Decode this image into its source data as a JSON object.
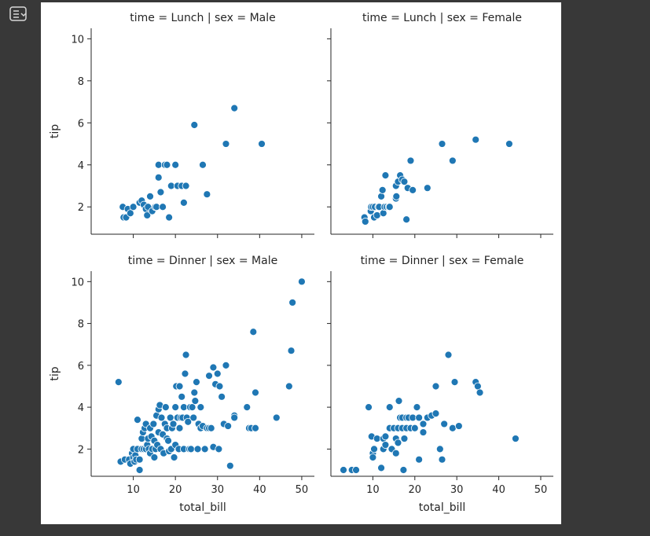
{
  "output_toolbar": {
    "icon": "output-icon"
  },
  "chart_data": {
    "type": "scatter",
    "layout": "facet-grid-2x2",
    "xlabel": "total_bill",
    "ylabel": "tip",
    "xlim": [
      0,
      53
    ],
    "ylim": [
      0.7,
      10.5
    ],
    "xticks": [
      10,
      20,
      30,
      40,
      50
    ],
    "yticks": [
      2,
      4,
      6,
      8,
      10
    ],
    "marker_color": "#1f77b4",
    "facets": [
      {
        "title": "time = Lunch | sex = Male",
        "time": "Lunch",
        "sex": "Male",
        "points": [
          [
            7.5,
            2.0
          ],
          [
            7.7,
            1.5
          ],
          [
            8.3,
            1.5
          ],
          [
            8.7,
            1.9
          ],
          [
            9.3,
            1.7
          ],
          [
            10,
            2.0
          ],
          [
            11.5,
            2.2
          ],
          [
            12,
            2.3
          ],
          [
            12.5,
            2.1
          ],
          [
            13,
            1.9
          ],
          [
            13.3,
            1.6
          ],
          [
            13.5,
            2.0
          ],
          [
            14,
            2.5
          ],
          [
            14.5,
            1.8
          ],
          [
            15.2,
            2.0
          ],
          [
            15.5,
            2.0
          ],
          [
            16,
            4.0
          ],
          [
            16,
            3.4
          ],
          [
            16.5,
            2.7
          ],
          [
            17,
            2.0
          ],
          [
            17.5,
            4.0
          ],
          [
            18,
            4.0
          ],
          [
            18.5,
            1.5
          ],
          [
            19,
            3.0
          ],
          [
            20,
            4.0
          ],
          [
            20.5,
            3.0
          ],
          [
            21.5,
            3.0
          ],
          [
            22,
            2.2
          ],
          [
            22.5,
            3.0
          ],
          [
            24.5,
            5.9
          ],
          [
            26.5,
            4.0
          ],
          [
            27.5,
            2.6
          ],
          [
            32,
            5.0
          ],
          [
            34,
            6.7
          ],
          [
            40.5,
            5.0
          ]
        ]
      },
      {
        "title": "time = Lunch | sex = Female",
        "time": "Lunch",
        "sex": "Female",
        "points": [
          [
            8,
            1.5
          ],
          [
            8.2,
            1.3
          ],
          [
            9.5,
            1.8
          ],
          [
            9.6,
            2.0
          ],
          [
            10,
            2.0
          ],
          [
            10.3,
            1.5
          ],
          [
            10.5,
            2.0
          ],
          [
            11,
            1.6
          ],
          [
            11.3,
            2.0
          ],
          [
            11.5,
            2.0
          ],
          [
            12,
            2.5
          ],
          [
            12.3,
            2.8
          ],
          [
            12.5,
            1.7
          ],
          [
            12.8,
            2.0
          ],
          [
            13,
            3.5
          ],
          [
            13.3,
            2.0
          ],
          [
            13.8,
            2.0
          ],
          [
            15.5,
            2.4
          ],
          [
            15.5,
            3.0
          ],
          [
            16,
            3.2
          ],
          [
            16.5,
            3.5
          ],
          [
            17,
            3.3
          ],
          [
            17.5,
            3.2
          ],
          [
            18,
            1.4
          ],
          [
            18.3,
            2.9
          ],
          [
            19,
            4.2
          ],
          [
            19.5,
            2.8
          ],
          [
            23,
            2.9
          ],
          [
            26.5,
            5.0
          ],
          [
            29,
            4.2
          ],
          [
            34.5,
            5.2
          ],
          [
            42.5,
            5.0
          ],
          [
            15.6,
            2.5
          ],
          [
            14,
            2.0
          ]
        ]
      },
      {
        "title": "time = Dinner | sex = Male",
        "time": "Dinner",
        "sex": "Male",
        "points": [
          [
            6.5,
            5.2
          ],
          [
            7,
            1.4
          ],
          [
            8,
            1.5
          ],
          [
            9,
            1.5
          ],
          [
            9.3,
            1.3
          ],
          [
            9.7,
            1.8
          ],
          [
            10,
            1.6
          ],
          [
            10,
            2.0
          ],
          [
            10.3,
            1.4
          ],
          [
            10.5,
            1.7
          ],
          [
            10.7,
            1.5
          ],
          [
            11,
            2.0
          ],
          [
            11,
            3.4
          ],
          [
            11.5,
            1.0
          ],
          [
            11.5,
            1.5
          ],
          [
            12,
            2.0
          ],
          [
            12,
            2.5
          ],
          [
            12.3,
            2.8
          ],
          [
            12.5,
            2.0
          ],
          [
            12.7,
            3.0
          ],
          [
            13,
            2.0
          ],
          [
            13,
            3.2
          ],
          [
            13.3,
            2.2
          ],
          [
            13.5,
            2.5
          ],
          [
            13.7,
            2.0
          ],
          [
            14,
            3.0
          ],
          [
            14,
            1.8
          ],
          [
            14.3,
            2.6
          ],
          [
            14.5,
            2.0
          ],
          [
            14.8,
            3.2
          ],
          [
            15,
            1.6
          ],
          [
            15,
            2.4
          ],
          [
            15.3,
            2.0
          ],
          [
            15.5,
            3.6
          ],
          [
            15.7,
            2.2
          ],
          [
            16,
            2.8
          ],
          [
            16,
            3.9
          ],
          [
            16.3,
            4.1
          ],
          [
            16.5,
            2.0
          ],
          [
            16.7,
            3.5
          ],
          [
            17,
            2.7
          ],
          [
            17.2,
            1.8
          ],
          [
            17.5,
            3.2
          ],
          [
            17.7,
            4.0
          ],
          [
            18,
            2.5
          ],
          [
            18,
            3.0
          ],
          [
            18.3,
            2.4
          ],
          [
            18.5,
            1.9
          ],
          [
            18.8,
            3.5
          ],
          [
            19,
            2.0
          ],
          [
            19.2,
            3.0
          ],
          [
            19.5,
            3.2
          ],
          [
            19.7,
            1.6
          ],
          [
            20,
            4.0
          ],
          [
            20,
            2.2
          ],
          [
            20.2,
            5.0
          ],
          [
            20.5,
            3.5
          ],
          [
            20.8,
            2.0
          ],
          [
            21,
            3.0
          ],
          [
            21,
            5.0
          ],
          [
            21.3,
            3.5
          ],
          [
            21.5,
            4.5
          ],
          [
            21.7,
            3.5
          ],
          [
            22,
            2.0
          ],
          [
            22,
            4.0
          ],
          [
            22.3,
            5.6
          ],
          [
            22.5,
            6.5
          ],
          [
            22.7,
            3.5
          ],
          [
            23,
            3.3
          ],
          [
            23.3,
            2.0
          ],
          [
            23.5,
            4.0
          ],
          [
            23.7,
            2.0
          ],
          [
            24,
            4.0
          ],
          [
            24.3,
            3.5
          ],
          [
            24.5,
            4.7
          ],
          [
            24.7,
            4.3
          ],
          [
            25,
            5.2
          ],
          [
            25.3,
            2.0
          ],
          [
            25.5,
            3.2
          ],
          [
            26,
            3.0
          ],
          [
            26,
            4.0
          ],
          [
            26.5,
            3.1
          ],
          [
            27,
            2.0
          ],
          [
            27.5,
            3.0
          ],
          [
            28,
            3.0
          ],
          [
            28,
            5.5
          ],
          [
            28.5,
            3.0
          ],
          [
            29,
            5.9
          ],
          [
            29,
            2.1
          ],
          [
            29.5,
            5.1
          ],
          [
            30,
            5.6
          ],
          [
            30.3,
            2.0
          ],
          [
            30.5,
            5.0
          ],
          [
            31,
            4.5
          ],
          [
            31.5,
            3.2
          ],
          [
            32,
            6.0
          ],
          [
            32.5,
            3.1
          ],
          [
            33,
            1.2
          ],
          [
            34,
            3.6
          ],
          [
            34,
            3.5
          ],
          [
            37,
            4.0
          ],
          [
            37.5,
            3.0
          ],
          [
            38,
            3.0
          ],
          [
            38.5,
            7.6
          ],
          [
            39,
            4.7
          ],
          [
            39,
            3.0
          ],
          [
            44,
            3.5
          ],
          [
            47,
            5.0
          ],
          [
            47.5,
            6.7
          ],
          [
            47.8,
            9.0
          ],
          [
            50,
            10.0
          ]
        ]
      },
      {
        "title": "time = Dinner | sex = Female",
        "time": "Dinner",
        "sex": "Female",
        "points": [
          [
            3,
            1.0
          ],
          [
            5,
            1.0
          ],
          [
            6,
            1.0
          ],
          [
            9,
            4.0
          ],
          [
            9.7,
            2.6
          ],
          [
            10,
            1.8
          ],
          [
            10,
            1.6
          ],
          [
            10.3,
            2.0
          ],
          [
            11,
            2.5
          ],
          [
            12,
            1.1
          ],
          [
            12.5,
            2.5
          ],
          [
            12.5,
            2.0
          ],
          [
            13,
            2.2
          ],
          [
            13,
            2.6
          ],
          [
            14,
            4.0
          ],
          [
            14,
            3.0
          ],
          [
            14.5,
            2.0
          ],
          [
            15,
            3.0
          ],
          [
            15.5,
            2.5
          ],
          [
            15.5,
            1.8
          ],
          [
            16,
            2.3
          ],
          [
            16,
            3.0
          ],
          [
            16.2,
            4.3
          ],
          [
            16.5,
            3.5
          ],
          [
            17,
            3.0
          ],
          [
            17,
            3.5
          ],
          [
            17.3,
            1.0
          ],
          [
            17.5,
            2.5
          ],
          [
            18,
            3.0
          ],
          [
            18,
            3.5
          ],
          [
            18.5,
            3.5
          ],
          [
            19,
            3.0
          ],
          [
            19.5,
            3.5
          ],
          [
            20,
            3.0
          ],
          [
            20.5,
            4.0
          ],
          [
            21,
            1.5
          ],
          [
            21,
            3.5
          ],
          [
            22,
            2.8
          ],
          [
            22,
            3.2
          ],
          [
            23,
            3.5
          ],
          [
            24,
            3.6
          ],
          [
            25,
            3.7
          ],
          [
            25,
            5.0
          ],
          [
            26,
            2.0
          ],
          [
            26.5,
            1.5
          ],
          [
            27,
            3.2
          ],
          [
            28,
            6.5
          ],
          [
            29,
            3.0
          ],
          [
            29.5,
            5.2
          ],
          [
            30.5,
            3.1
          ],
          [
            34.5,
            5.2
          ],
          [
            35,
            5.0
          ],
          [
            35.5,
            4.7
          ],
          [
            44,
            2.5
          ]
        ]
      }
    ]
  }
}
